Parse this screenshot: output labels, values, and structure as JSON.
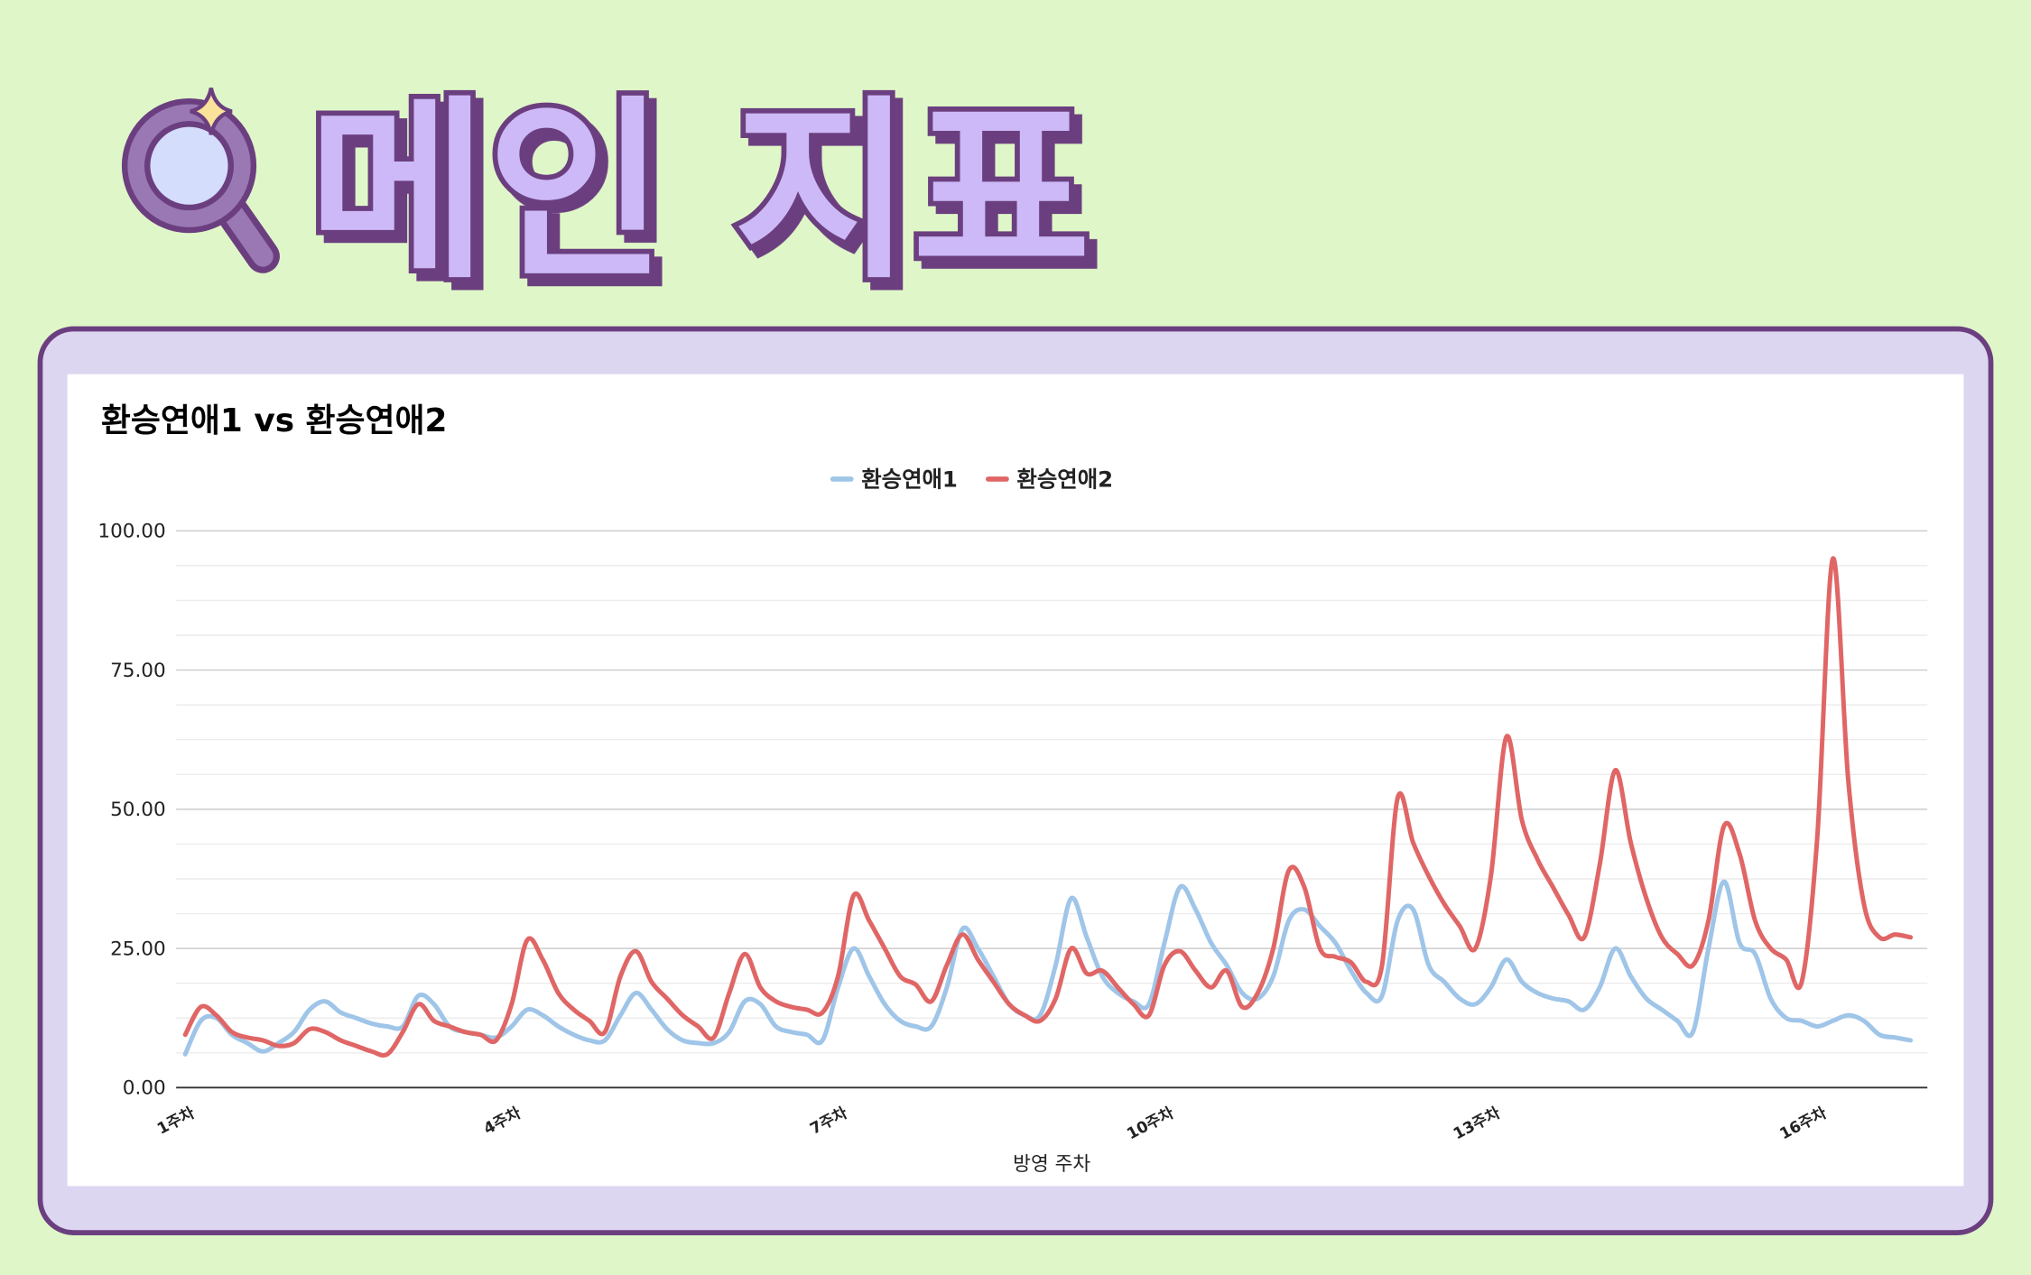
{
  "header": {
    "title": "메인 지표"
  },
  "chart_data": {
    "type": "line",
    "title": "환승연애1 vs 환승연애2",
    "x_label": "방영 주차",
    "categories": [
      "1주차",
      null,
      null,
      null,
      null,
      null,
      null,
      null,
      null,
      null,
      null,
      null,
      null,
      null,
      null,
      null,
      null,
      null,
      null,
      null,
      null,
      "4주차",
      null,
      null,
      null,
      null,
      null,
      null,
      null,
      null,
      null,
      null,
      null,
      null,
      null,
      null,
      null,
      null,
      null,
      null,
      null,
      null,
      "7주차",
      null,
      null,
      null,
      null,
      null,
      null,
      null,
      null,
      null,
      null,
      null,
      null,
      null,
      null,
      null,
      null,
      null,
      null,
      null,
      null,
      "10주차",
      null,
      null,
      null,
      null,
      null,
      null,
      null,
      null,
      null,
      null,
      null,
      null,
      null,
      null,
      null,
      null,
      null,
      null,
      null,
      null,
      "13주차",
      null,
      null,
      null,
      null,
      null,
      null,
      null,
      null,
      null,
      null,
      null,
      null,
      null,
      null,
      null,
      null,
      null,
      null,
      null,
      null,
      "16주차",
      null,
      null,
      null,
      null,
      null,
      null
    ],
    "series": [
      {
        "name": "환승연애1",
        "color": "#9fc5e8",
        "values": [
          6,
          12,
          12.5,
          9.5,
          8,
          6.5,
          8,
          10,
          14,
          15.5,
          13.5,
          12.5,
          11.5,
          11,
          11,
          16.5,
          15,
          11,
          10,
          9.5,
          9,
          11,
          14,
          13,
          11,
          9.5,
          8.5,
          8.5,
          13,
          17,
          14,
          10.5,
          8.5,
          8,
          8,
          10,
          15.5,
          15,
          11,
          10,
          9.5,
          8.5,
          18,
          25,
          20,
          15,
          12,
          11,
          11,
          18,
          28.5,
          25,
          20,
          15,
          13,
          13,
          22,
          34,
          27,
          20,
          17,
          15.5,
          15,
          26,
          36,
          32,
          26,
          22,
          17,
          16,
          20,
          30,
          32,
          29,
          26,
          21,
          17,
          16.5,
          30,
          32,
          22,
          19,
          16,
          15,
          18,
          23,
          19,
          17,
          16,
          15.5,
          14,
          18,
          25,
          20,
          16,
          14,
          12,
          10,
          25,
          37,
          26,
          24,
          16,
          12.5,
          12,
          11,
          12,
          13,
          12,
          9.5,
          9,
          8.5
        ]
      },
      {
        "name": "환승연애2",
        "color": "#e06666",
        "values": [
          9.5,
          14.5,
          13,
          10,
          9,
          8.5,
          7.5,
          8,
          10.5,
          10,
          8.5,
          7.5,
          6.5,
          6,
          10,
          15,
          12,
          11,
          10,
          9.5,
          8.5,
          15,
          26.5,
          23,
          17,
          14,
          12,
          10,
          20,
          24.5,
          19,
          16,
          13,
          11,
          9,
          17,
          24,
          18,
          15.5,
          14.5,
          14,
          13.5,
          20,
          34.5,
          30,
          25,
          20,
          18.5,
          15.5,
          22,
          27.5,
          23,
          19,
          15,
          13,
          12,
          16,
          25,
          20.5,
          21,
          18,
          15,
          13,
          22,
          24.5,
          21,
          18,
          21,
          14.5,
          17,
          25,
          39,
          36,
          25,
          23.5,
          22.5,
          19,
          22,
          52,
          44,
          38,
          33,
          29,
          25,
          38,
          63,
          48,
          41,
          36,
          31,
          27,
          40,
          57,
          44,
          34,
          27,
          24,
          22,
          30,
          47,
          42,
          30,
          25,
          23,
          19,
          45,
          95,
          55,
          33,
          27,
          27.5,
          27
        ]
      }
    ],
    "ylim": [
      0,
      100
    ],
    "yticks": [
      {
        "value": 0,
        "label": "0.00"
      },
      {
        "value": 25,
        "label": "25.00"
      },
      {
        "value": 50,
        "label": "50.00"
      },
      {
        "value": 75,
        "label": "75.00"
      },
      {
        "value": 100,
        "label": "100.00"
      }
    ],
    "minor_yticks": [
      6.25,
      12.5,
      18.75,
      31.25,
      37.5,
      43.75,
      56.25,
      62.5,
      68.75,
      81.25,
      87.5,
      93.75
    ],
    "grid": true,
    "legend": "top"
  }
}
